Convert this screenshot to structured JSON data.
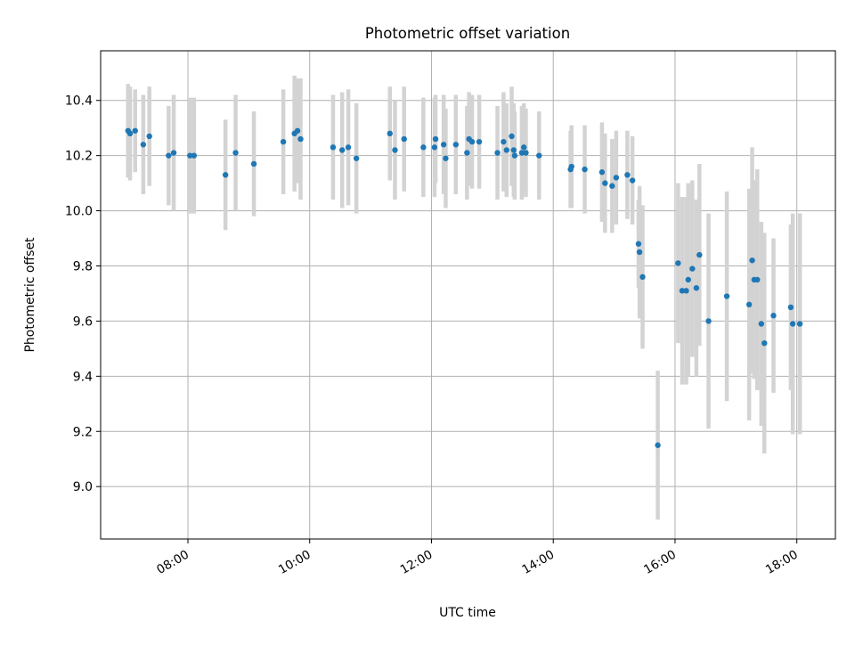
{
  "chart_data": {
    "type": "scatter",
    "title": "Photometric offset variation",
    "xlabel": "UTC time",
    "ylabel": "Photometric offset",
    "x_ticks": [
      "08:00",
      "10:00",
      "12:00",
      "14:00",
      "16:00",
      "18:00"
    ],
    "y_ticks": [
      "9.0",
      "9.2",
      "9.4",
      "9.6",
      "9.8",
      "10.0",
      "10.2",
      "10.4"
    ],
    "xlim": [
      "06:34",
      "18:38"
    ],
    "ylim": [
      8.81,
      10.58
    ],
    "grid": true,
    "colors": {
      "point": "#1f77b4",
      "errorbar": "#d3d3d3",
      "grid": "#b0b0b0"
    },
    "series": [
      {
        "x": [
          "07:01",
          "07:03",
          "07:08",
          "07:16",
          "07:22",
          "07:41",
          "07:46",
          "08:02",
          "08:06",
          "08:37",
          "08:47",
          "09:05",
          "09:34",
          "09:45",
          "09:48",
          "09:51",
          "10:23",
          "10:32",
          "10:38",
          "10:46",
          "11:19",
          "11:24",
          "11:33",
          "11:52",
          "12:03",
          "12:04",
          "12:12",
          "12:14",
          "12:24",
          "12:35",
          "12:37",
          "12:40",
          "12:47",
          "13:05",
          "13:11",
          "13:14",
          "13:19",
          "13:21",
          "13:22",
          "13:29",
          "13:31",
          "13:33",
          "13:46",
          "14:17",
          "14:18",
          "14:31",
          "14:48",
          "14:51",
          "14:58",
          "15:02",
          "15:13",
          "15:18",
          "15:24",
          "15:25",
          "15:28",
          "15:43",
          "16:03",
          "16:07",
          "16:11",
          "16:13",
          "16:17",
          "16:21",
          "16:24",
          "16:33",
          "16:51",
          "17:13",
          "17:16",
          "17:18",
          "17:21",
          "17:25",
          "17:28",
          "17:37",
          "17:54",
          "17:56",
          "18:03"
        ],
        "y": [
          10.29,
          10.28,
          10.29,
          10.24,
          10.27,
          10.2,
          10.21,
          10.2,
          10.2,
          10.13,
          10.21,
          10.17,
          10.25,
          10.28,
          10.29,
          10.26,
          10.23,
          10.22,
          10.23,
          10.19,
          10.28,
          10.22,
          10.26,
          10.23,
          10.23,
          10.26,
          10.24,
          10.19,
          10.24,
          10.21,
          10.26,
          10.25,
          10.25,
          10.21,
          10.25,
          10.22,
          10.27,
          10.22,
          10.2,
          10.21,
          10.23,
          10.21,
          10.2,
          10.15,
          10.16,
          10.15,
          10.14,
          10.1,
          10.09,
          10.12,
          10.13,
          10.11,
          9.88,
          9.85,
          9.76,
          9.15,
          9.81,
          9.71,
          9.71,
          9.75,
          9.79,
          9.72,
          9.84,
          9.6,
          9.69,
          9.66,
          9.82,
          9.75,
          9.75,
          9.59,
          9.52,
          9.62,
          9.65,
          9.59,
          9.59
        ],
        "yerr": [
          0.17,
          0.17,
          0.15,
          0.18,
          0.18,
          0.18,
          0.21,
          0.21,
          0.21,
          0.2,
          0.21,
          0.19,
          0.19,
          0.21,
          0.19,
          0.22,
          0.19,
          0.21,
          0.21,
          0.2,
          0.17,
          0.18,
          0.19,
          0.18,
          0.18,
          0.16,
          0.18,
          0.18,
          0.18,
          0.17,
          0.17,
          0.17,
          0.17,
          0.17,
          0.18,
          0.17,
          0.18,
          0.17,
          0.16,
          0.17,
          0.16,
          0.16,
          0.16,
          0.14,
          0.15,
          0.16,
          0.18,
          0.18,
          0.17,
          0.17,
          0.16,
          0.16,
          0.16,
          0.24,
          0.26,
          0.27,
          0.29,
          0.34,
          0.34,
          0.35,
          0.32,
          0.32,
          0.33,
          0.39,
          0.38,
          0.42,
          0.41,
          0.36,
          0.4,
          0.37,
          0.4,
          0.28,
          0.3,
          0.4,
          0.4
        ]
      }
    ]
  }
}
